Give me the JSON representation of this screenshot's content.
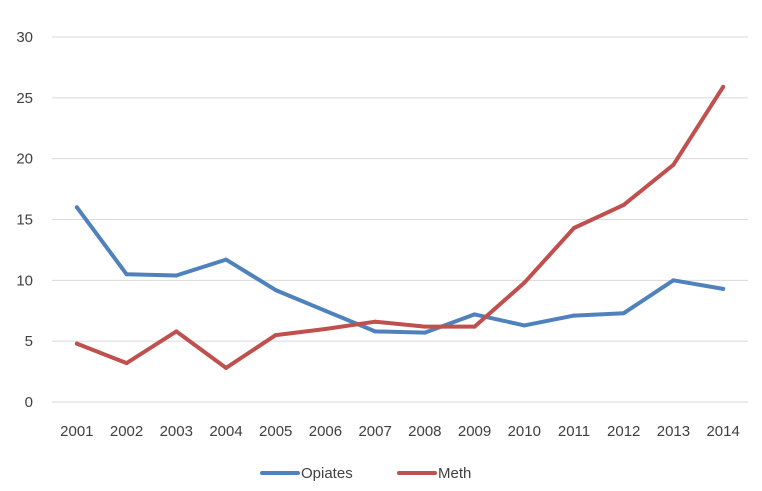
{
  "chart_data": {
    "type": "line",
    "categories": [
      "2001",
      "2002",
      "2003",
      "2004",
      "2005",
      "2006",
      "2007",
      "2008",
      "2009",
      "2010",
      "2011",
      "2012",
      "2013",
      "2014"
    ],
    "series": [
      {
        "name": "Opiates",
        "color": "#4f81bd",
        "values": [
          16.0,
          10.5,
          10.4,
          11.7,
          9.2,
          7.5,
          5.8,
          5.7,
          7.2,
          6.3,
          7.1,
          7.3,
          10.0,
          9.3
        ]
      },
      {
        "name": "Meth",
        "color": "#c0504d",
        "values": [
          4.8,
          3.2,
          5.8,
          2.8,
          5.5,
          6.0,
          6.6,
          6.2,
          6.2,
          9.8,
          14.3,
          16.2,
          19.5,
          25.9
        ]
      }
    ],
    "yticks": [
      "0",
      "5",
      "10",
      "15",
      "20",
      "25",
      "30"
    ],
    "ylim": [
      0,
      30
    ],
    "grid": true,
    "legend_position": "bottom"
  }
}
